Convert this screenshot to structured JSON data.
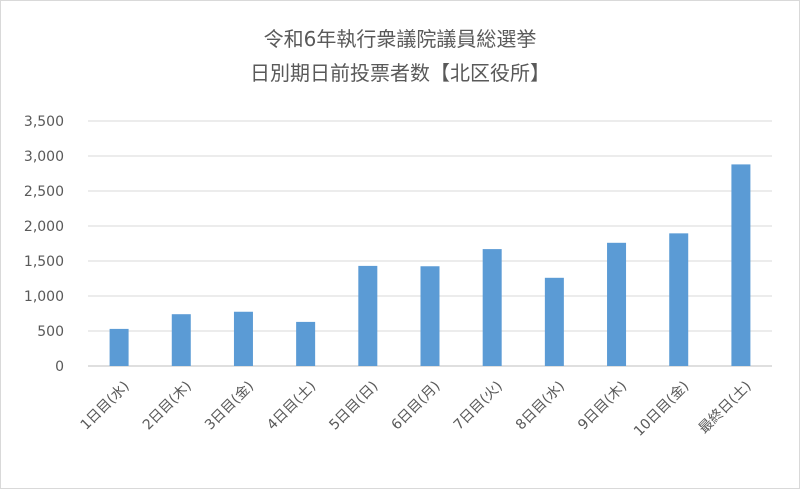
{
  "chart_data": {
    "type": "bar",
    "title": [
      "令和6年執行衆議院議員総選挙",
      "日別期日前投票者数【北区役所】"
    ],
    "categories": [
      "1日目(水)",
      "2日目(木)",
      "3日目(金)",
      "4日目(土)",
      "5日目(日)",
      "6日目(月)",
      "7日目(火)",
      "8日目(水)",
      "9日目(木)",
      "10日目(金)",
      "最終日(土)"
    ],
    "values": [
      530,
      740,
      775,
      630,
      1430,
      1425,
      1670,
      1260,
      1760,
      1895,
      2880
    ],
    "yticks": [
      "0",
      "500",
      "1,000",
      "1,500",
      "2,000",
      "2,500",
      "3,000",
      "3,500"
    ],
    "ylim": [
      0,
      3500
    ],
    "bar_color": "#5b9bd5",
    "grid": true,
    "legend": "none"
  }
}
